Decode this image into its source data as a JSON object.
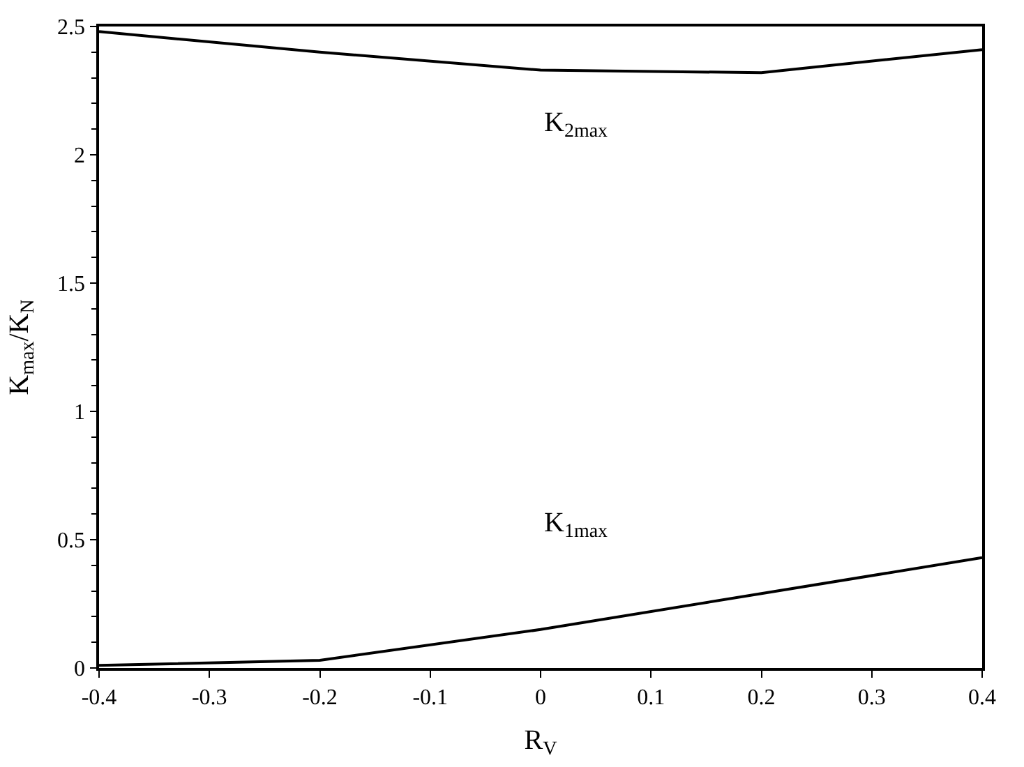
{
  "chart_data": {
    "type": "line",
    "xlabel": "R$_{V}$",
    "ylabel": "K$_{max}$/K$_{N}$",
    "x": [
      -0.4,
      -0.2,
      0,
      0.2,
      0.4
    ],
    "series": [
      {
        "name": "K$_{1max}$",
        "color": "#000000",
        "values": [
          0.01,
          0.03,
          0.15,
          0.29,
          0.43
        ]
      },
      {
        "name": "K$_{2max}$",
        "color": "#000000",
        "values": [
          2.48,
          2.4,
          2.33,
          2.32,
          2.41
        ]
      }
    ],
    "xlim": [
      -0.4,
      0.4
    ],
    "xticks": [
      -0.4,
      -0.3,
      -0.2,
      -0.1,
      0,
      0.1,
      0.2,
      0.3,
      0.4
    ],
    "ylim": [
      0,
      2.5
    ],
    "yticks": [
      0,
      0.5,
      1,
      1.5,
      2,
      2.5
    ],
    "legend": false,
    "marker": "none",
    "line_style": "solid"
  }
}
